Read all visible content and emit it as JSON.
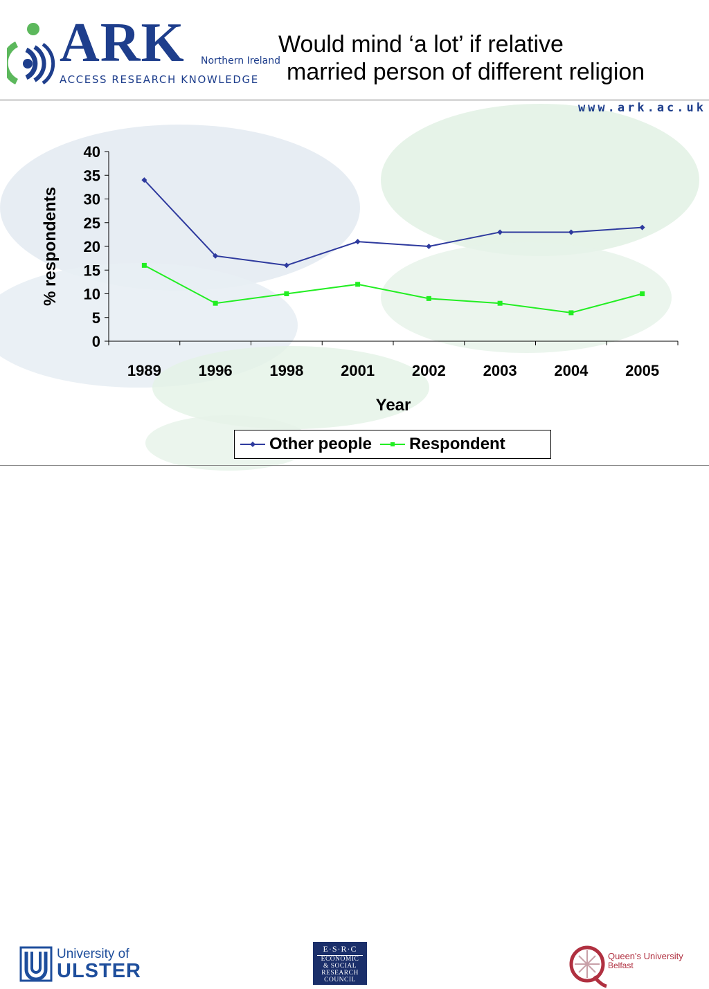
{
  "header": {
    "logo_text": "ARK",
    "logo_region": "Northern Ireland",
    "logo_tagline": "ACCESS RESEARCH KNOWLEDGE",
    "title_line1": "Would mind ‘a lot’ if relative",
    "title_line2": "married person of different religion",
    "url": "www.ark.ac.uk"
  },
  "colors": {
    "brand_blue": "#1e3e8c",
    "brand_green": "#5cb85c",
    "series_other": "#2e3a9e",
    "series_respondent": "#22ee22"
  },
  "chart_data": {
    "type": "line",
    "title": "Would mind ‘a lot’ if relative married person of different religion",
    "xlabel": "Year",
    "ylabel": "% respondents",
    "categories": [
      "1989",
      "1996",
      "1998",
      "2001",
      "2002",
      "2003",
      "2004",
      "2005"
    ],
    "ylim": [
      0,
      40
    ],
    "yticks": [
      "0",
      "5",
      "10",
      "15",
      "20",
      "25",
      "30",
      "35",
      "40"
    ],
    "grid": false,
    "legend_position": "bottom",
    "series": [
      {
        "name": "Other people",
        "values": [
          34,
          18,
          16,
          21,
          20,
          23,
          23,
          24
        ],
        "color": "#2e3a9e",
        "marker": "diamond"
      },
      {
        "name": "Respondent",
        "values": [
          16,
          8,
          10,
          12,
          9,
          8,
          6,
          10
        ],
        "color": "#22ee22",
        "marker": "square"
      }
    ]
  },
  "footer": {
    "ulster_prefix": "University of",
    "ulster_name": "ULSTER",
    "esrc_abbrev": "E·S·R·C",
    "esrc_lines": [
      "ECONOMIC",
      "& SOCIAL",
      "RESEARCH",
      "COUNCIL"
    ],
    "qub_name": "Queen's University",
    "qub_city": "Belfast"
  }
}
